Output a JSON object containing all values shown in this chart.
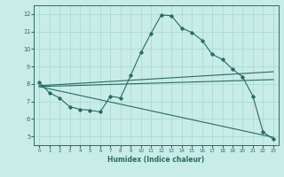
{
  "title": "",
  "xlabel": "Humidex (Indice chaleur)",
  "bg_color": "#c8ece8",
  "grid_color": "#a8d8d0",
  "line_color": "#2a6b62",
  "xlim": [
    -0.5,
    23.5
  ],
  "ylim": [
    4.5,
    12.5
  ],
  "xticks": [
    0,
    1,
    2,
    3,
    4,
    5,
    6,
    7,
    8,
    9,
    10,
    11,
    12,
    13,
    14,
    15,
    16,
    17,
    18,
    19,
    20,
    21,
    22,
    23
  ],
  "yticks": [
    5,
    6,
    7,
    8,
    9,
    10,
    11,
    12
  ],
  "line1_x": [
    0,
    1,
    2,
    3,
    4,
    5,
    6,
    7,
    8,
    9,
    10,
    11,
    12,
    13,
    14,
    15,
    16,
    17,
    18,
    19,
    20,
    21,
    22,
    23
  ],
  "line1_y": [
    8.1,
    7.5,
    7.2,
    6.7,
    6.55,
    6.5,
    6.4,
    7.3,
    7.2,
    8.5,
    9.8,
    10.9,
    11.95,
    11.9,
    11.2,
    10.95,
    10.5,
    9.7,
    9.4,
    8.85,
    8.4,
    7.3,
    5.25,
    4.85
  ],
  "line2_x": [
    0,
    23
  ],
  "line2_y": [
    7.9,
    8.7
  ],
  "line3_x": [
    0,
    23
  ],
  "line3_y": [
    7.85,
    8.25
  ],
  "line4_x": [
    0,
    23
  ],
  "line4_y": [
    7.85,
    4.95
  ]
}
